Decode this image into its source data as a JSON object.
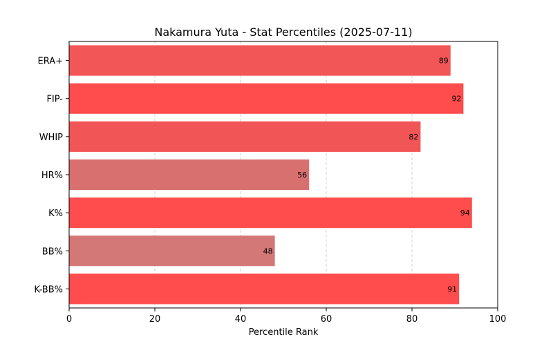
{
  "chart_data": {
    "type": "bar",
    "orientation": "horizontal",
    "title": "Nakamura Yuta - Stat Percentiles (2025-07-11)",
    "xlabel": "Percentile Rank",
    "ylabel": "",
    "xlim": [
      0,
      100
    ],
    "xticks": [
      0,
      20,
      40,
      60,
      80,
      100
    ],
    "grid": "vertical dashed",
    "categories": [
      "ERA+",
      "FIP-",
      "WHIP",
      "HR%",
      "K%",
      "BB%",
      "K-BB%"
    ],
    "values": [
      89,
      92,
      82,
      56,
      94,
      48,
      91
    ],
    "colors": [
      "#f35656",
      "#ff4c4c",
      "#f25555",
      "#d97070",
      "#ff4c4c",
      "#d47777",
      "#ff4c4c"
    ]
  }
}
